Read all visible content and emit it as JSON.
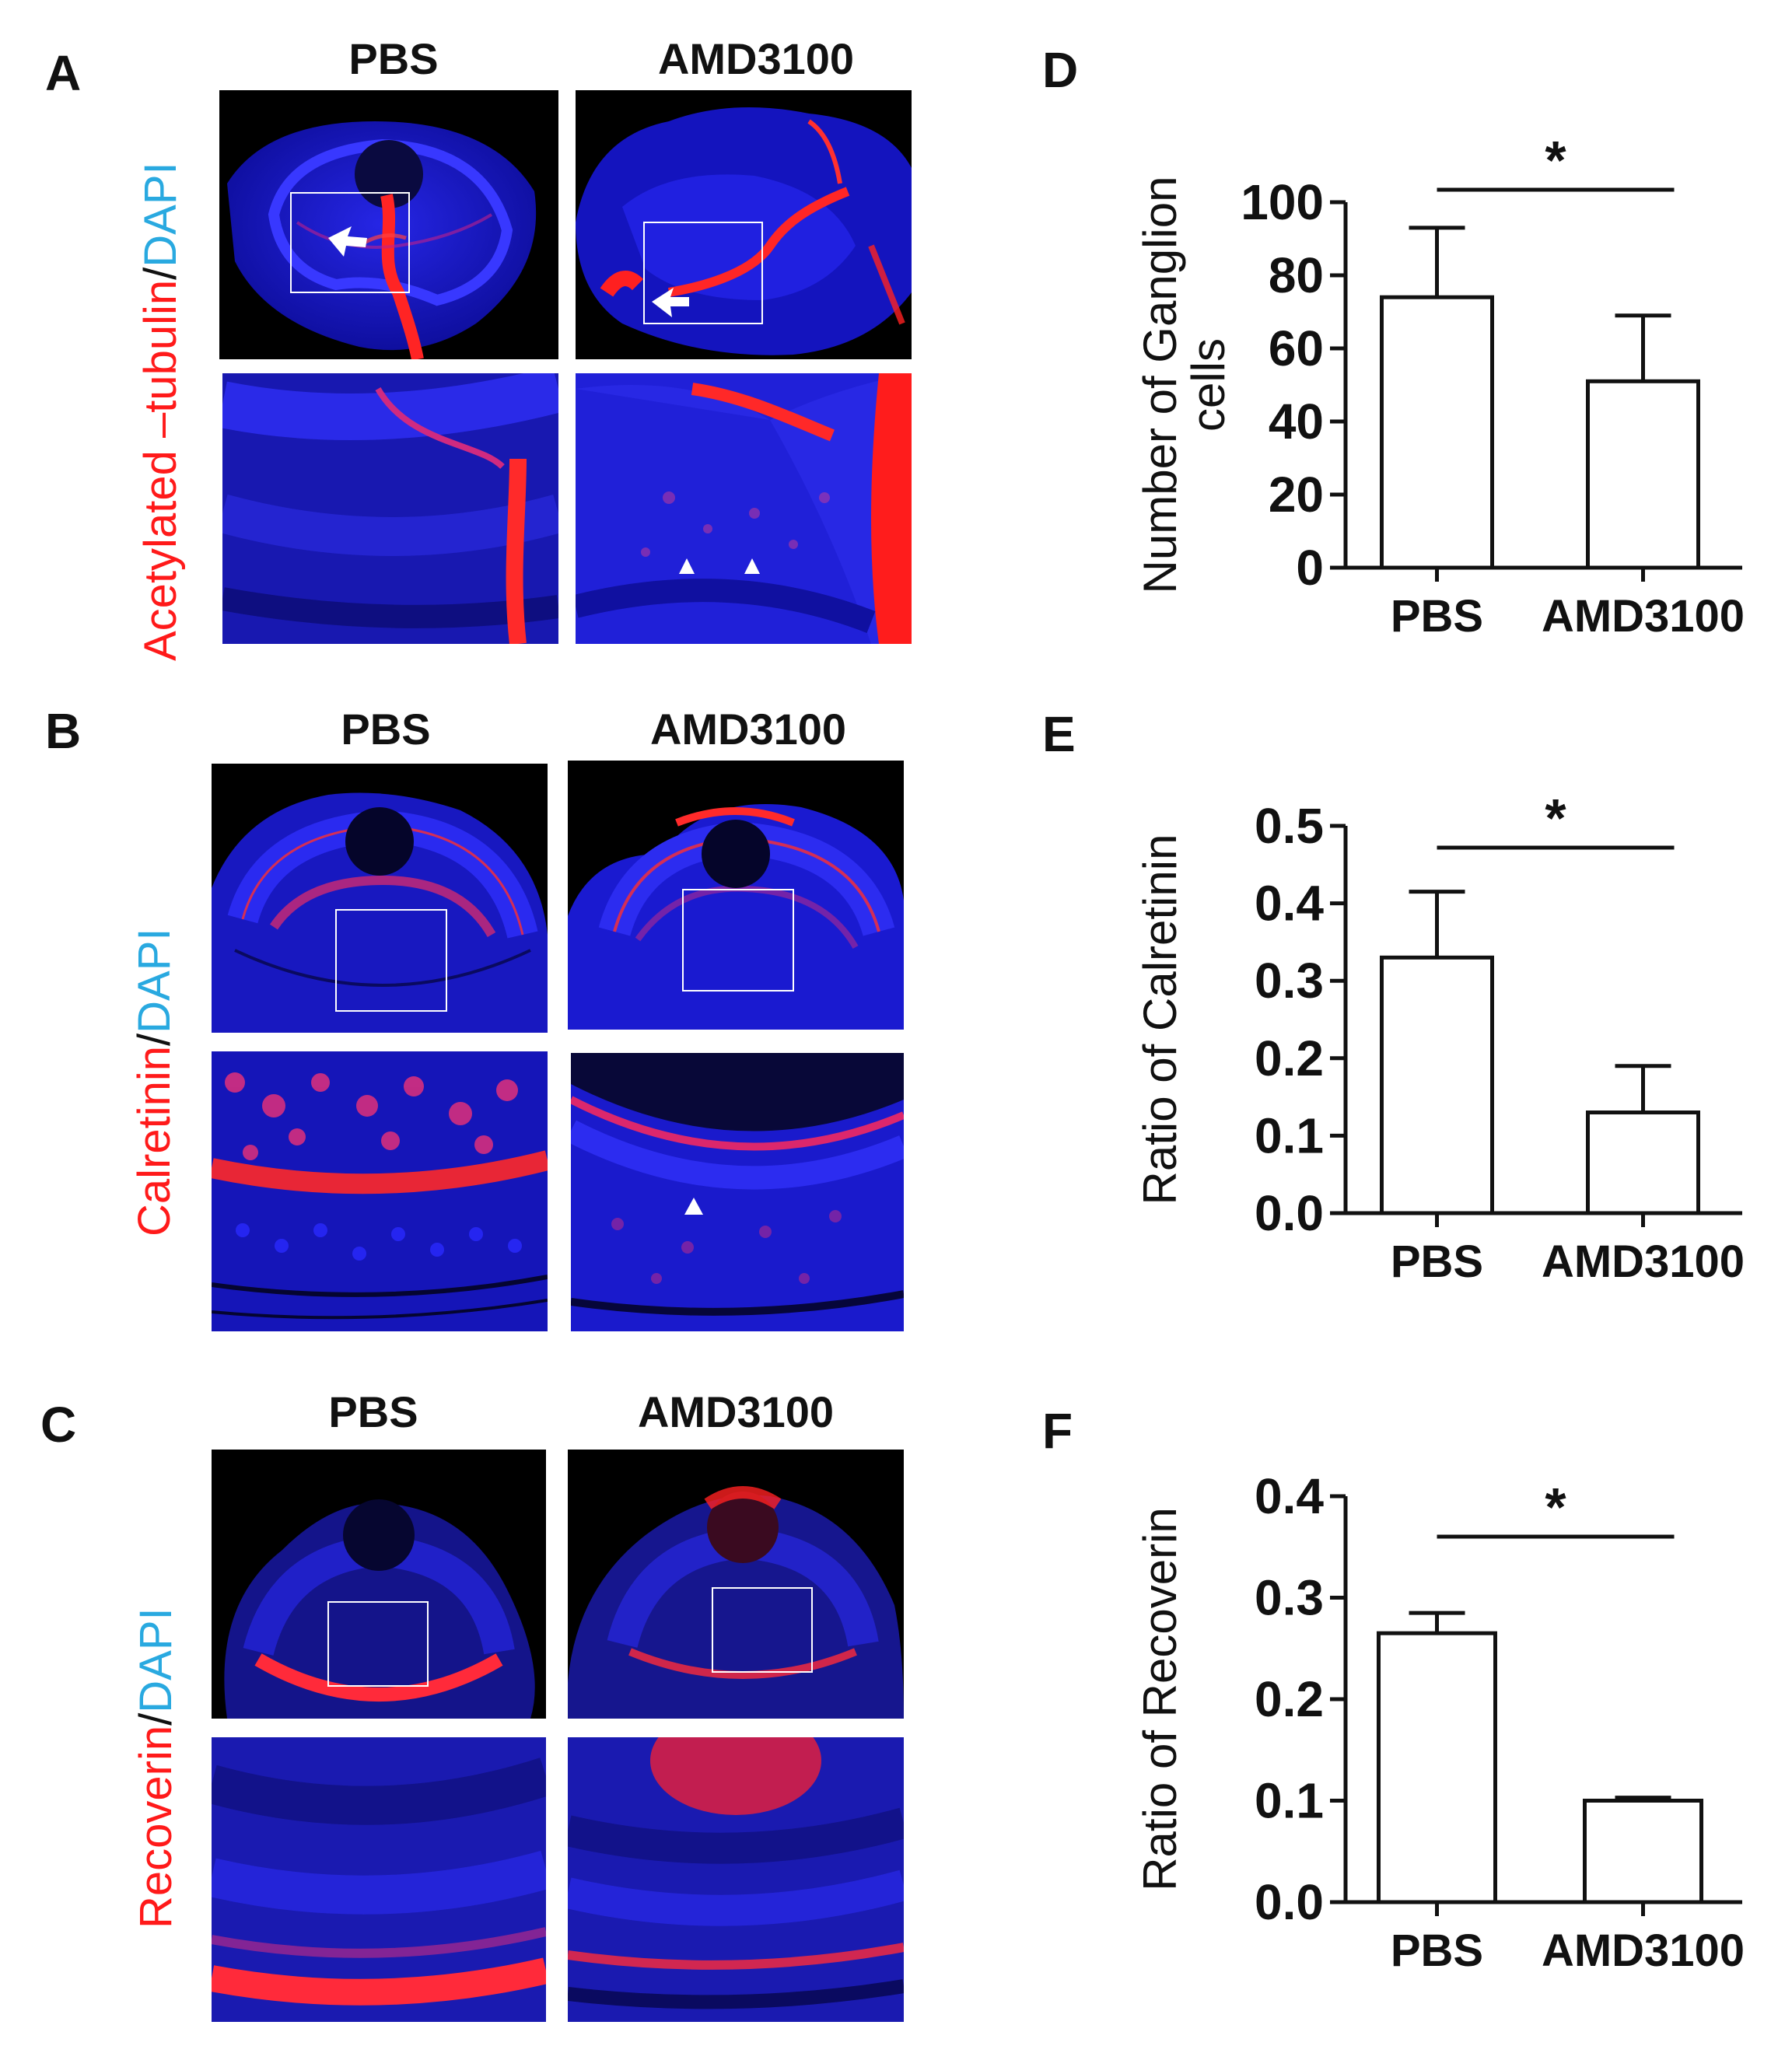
{
  "panels": {
    "A": {
      "letter": "A",
      "col_left": "PBS",
      "col_right": "AMD3100",
      "side_label_red": "Acetylated  –tubulin",
      "side_label_sep": "/",
      "side_label_cyan": "DAPI"
    },
    "B": {
      "letter": "B",
      "col_left": "PBS",
      "col_right": "AMD3100",
      "side_label_red": "Calretinin",
      "side_label_sep": "/",
      "side_label_cyan": "DAPI"
    },
    "C": {
      "letter": "C",
      "col_left": "PBS",
      "col_right": "AMD3100",
      "side_label_red": "Recoverin",
      "side_label_sep": "/",
      "side_label_cyan": "DAPI"
    },
    "D": {
      "letter": "D"
    },
    "E": {
      "letter": "E"
    },
    "F": {
      "letter": "F"
    }
  },
  "colors": {
    "dapi": "#1a1aff",
    "stain": "#ff2020",
    "label_red": "#ff1a1a",
    "label_cyan": "#29a9e0"
  },
  "chart_data": [
    {
      "type": "bar",
      "panel": "D",
      "categories": [
        "PBS",
        "AMD3100"
      ],
      "values": [
        74,
        51
      ],
      "error": [
        19,
        18
      ],
      "ylabel_lines": [
        "Number of Ganglion",
        "cells"
      ],
      "ylim": [
        0,
        100
      ],
      "yticks": [
        "0",
        "20",
        "40",
        "60",
        "80",
        "100"
      ],
      "ytick_values": [
        0,
        20,
        40,
        60,
        80,
        100
      ],
      "significance": "*"
    },
    {
      "type": "bar",
      "panel": "E",
      "categories": [
        "PBS",
        "AMD3100"
      ],
      "values": [
        0.33,
        0.13
      ],
      "error": [
        0.085,
        0.06
      ],
      "ylabel_lines": [
        "Ratio of Calretinin"
      ],
      "ylim": [
        0,
        0.5
      ],
      "yticks": [
        "0.0",
        "0.1",
        "0.2",
        "0.3",
        "0.4",
        "0.5"
      ],
      "ytick_values": [
        0,
        0.1,
        0.2,
        0.3,
        0.4,
        0.5
      ],
      "significance": "*"
    },
    {
      "type": "bar",
      "panel": "F",
      "categories": [
        "PBS",
        "AMD3100"
      ],
      "values": [
        0.265,
        0.1
      ],
      "error": [
        0.02,
        0.003
      ],
      "ylabel_lines": [
        "Ratio of Recoverin"
      ],
      "ylim": [
        0,
        0.4
      ],
      "yticks": [
        "0.0",
        "0.1",
        "0.2",
        "0.3",
        "0.4"
      ],
      "ytick_values": [
        0,
        0.1,
        0.2,
        0.3,
        0.4
      ],
      "significance": "*"
    }
  ]
}
